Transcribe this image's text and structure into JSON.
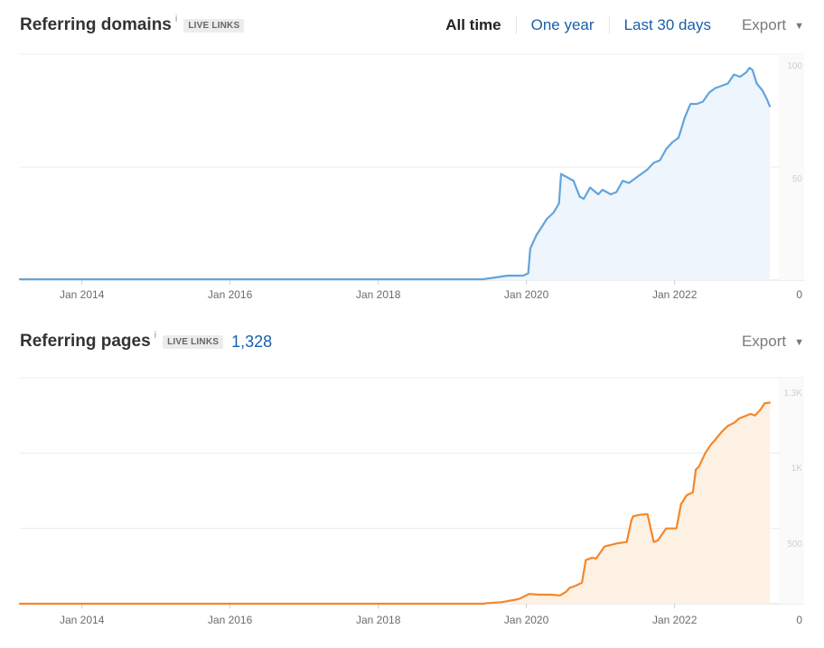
{
  "domains_panel": {
    "title": "Referring domains",
    "info": "i",
    "badge": "LIVE LINKS",
    "tabs": [
      "All time",
      "One year",
      "Last 30 days"
    ],
    "export_label": "Export",
    "caret": "▼",
    "colors": {
      "line": "#62a4dc",
      "fill": "#eef5fd"
    }
  },
  "pages_panel": {
    "title": "Referring pages",
    "info": "i",
    "badge": "LIVE LINKS",
    "count": "1,328",
    "export_label": "Export",
    "caret": "▼",
    "colors": {
      "line": "#f4872b",
      "fill": "#fdf1e4"
    }
  },
  "chart_data": [
    {
      "type": "area",
      "title": "Referring domains",
      "x_tick_labels": [
        "Jan 2014",
        "Jan 2016",
        "Jan 2018",
        "Jan 2020",
        "Jan 2022"
      ],
      "y_tick_labels": [
        "100",
        "50",
        "0"
      ],
      "ylim": [
        0,
        100
      ],
      "xlim": [
        "2013-03-01",
        "2023-04-15"
      ],
      "grid": true,
      "series": [
        {
          "x": [
            "2013-03-01",
            "2019-06-01",
            "2019-10-01",
            "2019-10-20",
            "2019-11-10",
            "2019-12-15",
            "2020-01-10",
            "2020-01-20",
            "2020-02-20",
            "2020-03-20",
            "2020-04-10",
            "2020-05-15",
            "2020-06-10",
            "2020-06-20",
            "2020-07-10",
            "2020-08-20",
            "2020-09-20",
            "2020-10-10",
            "2020-11-10",
            "2020-12-20",
            "2021-01-10",
            "2021-02-20",
            "2021-03-20",
            "2021-04-20",
            "2021-05-20",
            "2021-06-20",
            "2021-07-20",
            "2021-08-20",
            "2021-09-20",
            "2021-10-20",
            "2021-11-20",
            "2021-12-20",
            "2022-01-20",
            "2022-02-20",
            "2022-03-20",
            "2022-04-20",
            "2022-05-20",
            "2022-06-20",
            "2022-07-20",
            "2022-08-20",
            "2022-09-20",
            "2022-10-20",
            "2022-11-20",
            "2022-12-20",
            "2023-01-05",
            "2023-01-20",
            "2023-02-10",
            "2023-03-10",
            "2023-04-01",
            "2023-04-10",
            "2023-04-15"
          ],
          "y": [
            0.4,
            0.4,
            2,
            2,
            2,
            2,
            3,
            14,
            20,
            24,
            27,
            30,
            34,
            47,
            46,
            44,
            37,
            36,
            41,
            38,
            40,
            38,
            39,
            44,
            43,
            45,
            47,
            49,
            52,
            53,
            58,
            61,
            63,
            72,
            78,
            78,
            79,
            83,
            85,
            86,
            87,
            91,
            90,
            92,
            94,
            93,
            87,
            84,
            80,
            78,
            77
          ]
        }
      ]
    },
    {
      "type": "area",
      "title": "Referring pages",
      "x_tick_labels": [
        "Jan 2014",
        "Jan 2016",
        "Jan 2018",
        "Jan 2020",
        "Jan 2022"
      ],
      "y_tick_labels": [
        "1.3K",
        "1K",
        "500",
        "0"
      ],
      "ylim": [
        0,
        1500
      ],
      "xlim": [
        "2013-03-01",
        "2023-04-15"
      ],
      "grid": true,
      "series": [
        {
          "x": [
            "2013-03-01",
            "2019-06-01",
            "2019-07-01",
            "2019-09-01",
            "2019-11-20",
            "2019-12-01",
            "2020-01-15",
            "2020-03-01",
            "2020-05-01",
            "2020-06-15",
            "2020-07-15",
            "2020-08-01",
            "2020-09-01",
            "2020-10-01",
            "2020-10-20",
            "2020-11-20",
            "2020-12-10",
            "2021-01-20",
            "2021-02-20",
            "2021-03-20",
            "2021-05-10",
            "2021-06-01",
            "2021-06-10",
            "2021-07-10",
            "2021-08-20",
            "2021-09-20",
            "2021-10-10",
            "2021-11-20",
            "2022-01-10",
            "2022-02-01",
            "2022-03-01",
            "2022-04-01",
            "2022-04-15",
            "2022-05-01",
            "2022-06-01",
            "2022-07-01",
            "2022-07-15",
            "2022-08-20",
            "2022-09-20",
            "2022-10-20",
            "2022-11-15",
            "2023-01-10",
            "2023-02-01",
            "2023-03-01",
            "2023-03-20",
            "2023-04-15"
          ],
          "y": [
            0,
            0,
            5,
            10,
            30,
            35,
            65,
            60,
            60,
            55,
            80,
            105,
            120,
            140,
            290,
            305,
            300,
            380,
            390,
            400,
            410,
            550,
            580,
            590,
            595,
            410,
            420,
            500,
            500,
            660,
            720,
            740,
            890,
            910,
            1000,
            1060,
            1080,
            1140,
            1180,
            1200,
            1230,
            1260,
            1250,
            1290,
            1330,
            1335
          ]
        }
      ]
    }
  ]
}
